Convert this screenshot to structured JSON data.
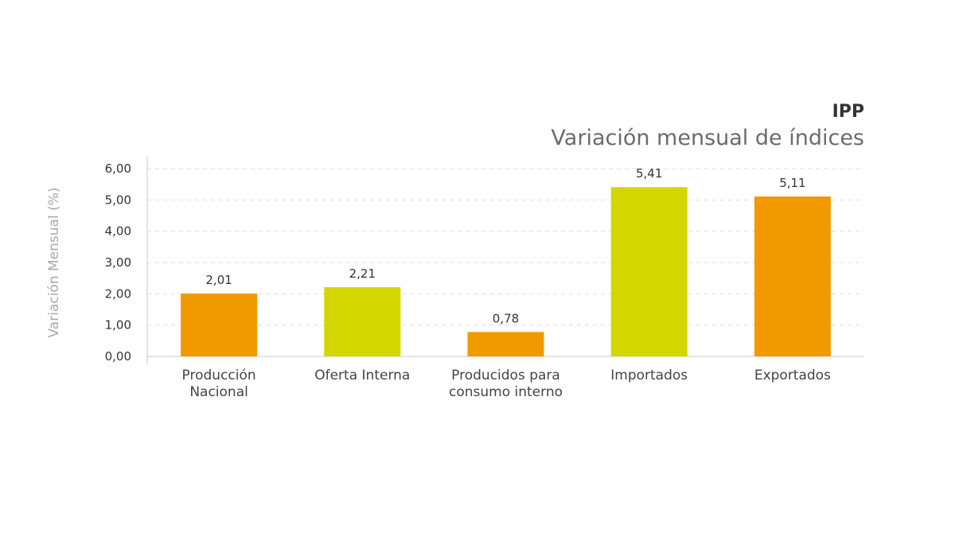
{
  "chart_data": {
    "type": "bar",
    "title": "IPP",
    "subtitle": "Variación mensual de índices",
    "ylabel": "Variación Mensual (%)",
    "xlabel": "",
    "categories": [
      "Producción Nacional",
      "Oferta Interna",
      "Producidos para consumo interno",
      "Importados",
      "Exportados"
    ],
    "category_lines": [
      [
        "Producción",
        "Nacional"
      ],
      [
        "Oferta Interna"
      ],
      [
        "Producidos para",
        "consumo interno"
      ],
      [
        "Importados"
      ],
      [
        "Exportados"
      ]
    ],
    "values": [
      2.01,
      2.21,
      0.78,
      5.41,
      5.11
    ],
    "value_labels": [
      "2,01",
      "2,21",
      "0,78",
      "5,41",
      "5,11"
    ],
    "colors": [
      "#f09a00",
      "#d4d600",
      "#f09a00",
      "#d4d600",
      "#f09a00"
    ],
    "ylim": [
      0,
      6
    ],
    "yticks": [
      0,
      1,
      2,
      3,
      4,
      5,
      6
    ],
    "ytick_labels": [
      "0,00",
      "1,00",
      "2,00",
      "3,00",
      "4,00",
      "5,00",
      "6,00"
    ],
    "grid": true,
    "grid_style": "dashed",
    "legend": "none"
  }
}
